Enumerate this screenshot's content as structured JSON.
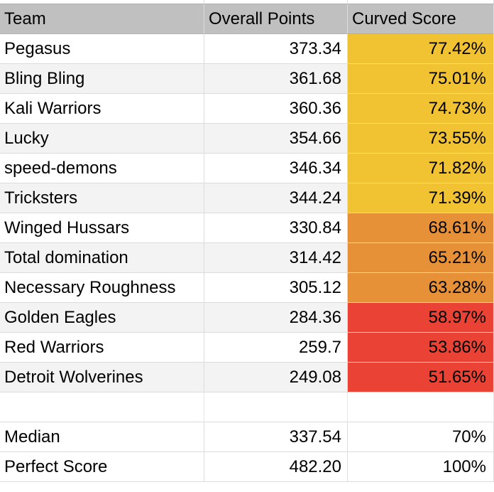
{
  "header": {
    "team": "Team",
    "points": "Overall Points",
    "score": "Curved Score"
  },
  "colors": {
    "yellow": "#f1c232",
    "orange": "#e69138",
    "red": "#ea4335",
    "header_bg": "#c0c0c0",
    "zebra": "#f3f3f3"
  },
  "rows": [
    {
      "team": "Pegasus",
      "points": "373.34",
      "score": "77.42%",
      "band": "yellow"
    },
    {
      "team": "Bling Bling",
      "points": "361.68",
      "score": "75.01%",
      "band": "yellow"
    },
    {
      "team": "Kali Warriors",
      "points": "360.36",
      "score": "74.73%",
      "band": "yellow"
    },
    {
      "team": "Lucky",
      "points": "354.66",
      "score": "73.55%",
      "band": "yellow"
    },
    {
      "team": "speed-demons",
      "points": "346.34",
      "score": "71.82%",
      "band": "yellow"
    },
    {
      "team": "Tricksters",
      "points": "344.24",
      "score": "71.39%",
      "band": "yellow"
    },
    {
      "team": "Winged Hussars",
      "points": "330.84",
      "score": "68.61%",
      "band": "orange"
    },
    {
      "team": "Total domination",
      "points": "314.42",
      "score": "65.21%",
      "band": "orange"
    },
    {
      "team": "Necessary Roughness",
      "points": "305.12",
      "score": "63.28%",
      "band": "orange"
    },
    {
      "team": "Golden Eagles",
      "points": "284.36",
      "score": "58.97%",
      "band": "red"
    },
    {
      "team": "Red Warriors",
      "points": "259.7",
      "score": "53.86%",
      "band": "red"
    },
    {
      "team": "Detroit Wolverines",
      "points": "249.08",
      "score": "51.65%",
      "band": "red"
    }
  ],
  "summary": [
    {
      "team": "Median",
      "points": "337.54",
      "score": "70%"
    },
    {
      "team": "Perfect Score",
      "points": "482.20",
      "score": "100%"
    }
  ]
}
